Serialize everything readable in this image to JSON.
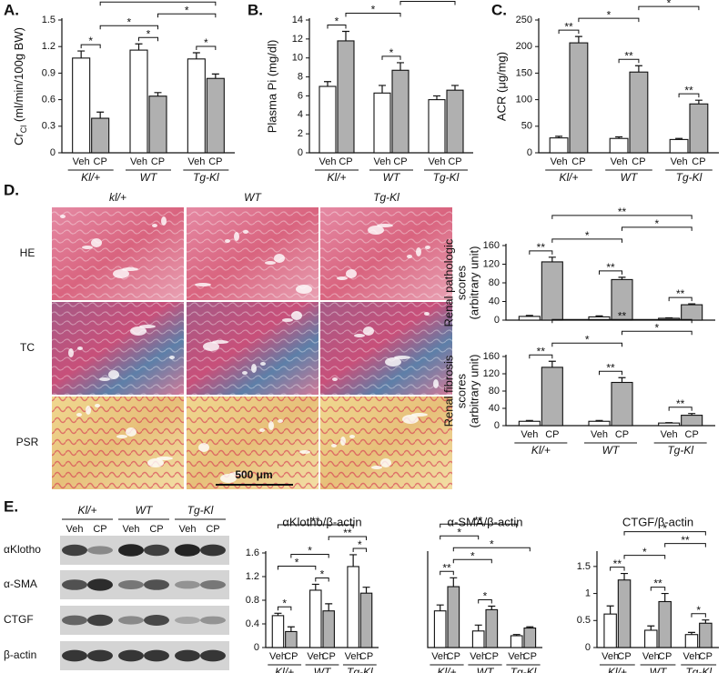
{
  "chart_data": [
    {
      "type": "bar",
      "panel": "A.",
      "ylabel_parts": [
        "Cr",
        "Cl",
        " (ml/min/100g BW)"
      ],
      "ylabel_subscript": [
        false,
        true,
        false
      ],
      "categories": [
        "Kl/+",
        "WT",
        "Tg-Kl"
      ],
      "series": [
        {
          "name": "Veh",
          "color": "#ffffff",
          "values": [
            1.07,
            1.16,
            1.06
          ],
          "errors": [
            0.08,
            0.07,
            0.07
          ]
        },
        {
          "name": "CP",
          "color": "#b0b0b0",
          "values": [
            0.39,
            0.64,
            0.84
          ],
          "errors": [
            0.07,
            0.04,
            0.05
          ]
        }
      ],
      "ylim": [
        0,
        1.5
      ],
      "yticks": [
        0,
        0.3,
        0.6,
        0.9,
        1.2,
        1.5
      ],
      "brackets": [
        {
          "from": 0,
          "to": 1,
          "label": "*"
        },
        {
          "from": 2,
          "to": 3,
          "label": "*"
        },
        {
          "from": 4,
          "to": 5,
          "label": "*"
        },
        {
          "from": 1,
          "to": 3,
          "label": "*"
        },
        {
          "from": 3,
          "to": 5,
          "label": "*"
        },
        {
          "from": 1,
          "to": 5,
          "label": "**"
        }
      ]
    },
    {
      "type": "bar",
      "panel": "B.",
      "ylabel": "Plasma Pi (mg/dl)",
      "categories": [
        "Kl/+",
        "WT",
        "Tg-Kl"
      ],
      "series": [
        {
          "name": "Veh",
          "color": "#ffffff",
          "values": [
            7.0,
            6.3,
            5.6
          ],
          "errors": [
            0.5,
            0.8,
            0.4
          ]
        },
        {
          "name": "CP",
          "color": "#b0b0b0",
          "values": [
            11.8,
            8.7,
            6.6
          ],
          "errors": [
            1.0,
            0.8,
            0.5
          ]
        }
      ],
      "ylim": [
        0,
        14
      ],
      "yticks": [
        0,
        2,
        4,
        6,
        8,
        10,
        12,
        14
      ],
      "brackets": [
        {
          "from": 0,
          "to": 1,
          "label": "*"
        },
        {
          "from": 2,
          "to": 3,
          "label": "*"
        },
        {
          "from": 1,
          "to": 3,
          "label": "*"
        },
        {
          "from": 3,
          "to": 5,
          "label": "*"
        },
        {
          "from": 1,
          "to": 5,
          "label": "**"
        }
      ]
    },
    {
      "type": "bar",
      "panel": "C.",
      "ylabel": "ACR (μg/mg)",
      "categories": [
        "Kl/+",
        "WT",
        "Tg-Kl"
      ],
      "series": [
        {
          "name": "Veh",
          "color": "#ffffff",
          "values": [
            28,
            27,
            25
          ],
          "errors": [
            3,
            3,
            2
          ]
        },
        {
          "name": "CP",
          "color": "#b0b0b0",
          "values": [
            207,
            152,
            92
          ],
          "errors": [
            12,
            12,
            7
          ]
        }
      ],
      "ylim": [
        0,
        250
      ],
      "yticks": [
        0,
        50,
        100,
        150,
        200,
        250
      ],
      "brackets": [
        {
          "from": 0,
          "to": 1,
          "label": "**"
        },
        {
          "from": 2,
          "to": 3,
          "label": "**"
        },
        {
          "from": 4,
          "to": 5,
          "label": "**"
        },
        {
          "from": 1,
          "to": 3,
          "label": "*"
        },
        {
          "from": 3,
          "to": 5,
          "label": "*"
        },
        {
          "from": 1,
          "to": 5,
          "label": "**"
        }
      ]
    },
    {
      "type": "bar",
      "ylabel_lines": [
        "Renal pathologic",
        "scores",
        "(arbitrary unit)"
      ],
      "xlabels": false,
      "categories": [
        "Kl/+",
        "WT",
        "Tg-Kl"
      ],
      "series": [
        {
          "name": "Veh",
          "color": "#ffffff",
          "values": [
            8,
            7,
            4
          ],
          "errors": [
            2,
            2,
            1
          ]
        },
        {
          "name": "CP",
          "color": "#b0b0b0",
          "values": [
            125,
            87,
            33
          ],
          "errors": [
            10,
            5,
            2
          ]
        }
      ],
      "ylim": [
        0,
        160
      ],
      "yticks": [
        0,
        40,
        80,
        120,
        160
      ],
      "brackets": [
        {
          "from": 0,
          "to": 1,
          "label": "**"
        },
        {
          "from": 2,
          "to": 3,
          "label": "**"
        },
        {
          "from": 4,
          "to": 5,
          "label": "**"
        },
        {
          "from": 1,
          "to": 3,
          "label": "*"
        },
        {
          "from": 3,
          "to": 5,
          "label": "*"
        },
        {
          "from": 1,
          "to": 5,
          "label": "**"
        }
      ]
    },
    {
      "type": "bar",
      "ylabel_lines": [
        "Renal fibrosis",
        "scores",
        "(arbitrary unit)"
      ],
      "categories": [
        "Kl/+",
        "WT",
        "Tg-Kl"
      ],
      "series": [
        {
          "name": "Veh",
          "color": "#ffffff",
          "values": [
            10,
            10,
            6
          ],
          "errors": [
            2,
            2,
            1
          ]
        },
        {
          "name": "CP",
          "color": "#b0b0b0",
          "values": [
            135,
            100,
            24
          ],
          "errors": [
            14,
            11,
            4
          ]
        }
      ],
      "ylim": [
        0,
        160
      ],
      "yticks": [
        0,
        40,
        80,
        120,
        160
      ],
      "brackets": [
        {
          "from": 0,
          "to": 1,
          "label": "**"
        },
        {
          "from": 2,
          "to": 3,
          "label": "**"
        },
        {
          "from": 4,
          "to": 5,
          "label": "**"
        },
        {
          "from": 1,
          "to": 3,
          "label": "*"
        },
        {
          "from": 3,
          "to": 5,
          "label": "*"
        },
        {
          "from": 1,
          "to": 5,
          "label": "**"
        }
      ]
    },
    {
      "type": "bar",
      "title": "αKlotho/β-actin",
      "categories": [
        "Kl/+",
        "WT",
        "Tg-Kl"
      ],
      "series": [
        {
          "name": "Veh",
          "color": "#ffffff",
          "values": [
            0.54,
            0.97,
            1.37
          ],
          "errors": [
            0.04,
            0.1,
            0.2
          ]
        },
        {
          "name": "CP",
          "color": "#b0b0b0",
          "values": [
            0.27,
            0.62,
            0.92
          ],
          "errors": [
            0.08,
            0.12,
            0.1
          ]
        }
      ],
      "ylim": [
        0,
        1.6
      ],
      "yticks": [
        0,
        0.4,
        0.8,
        1.2,
        1.6
      ],
      "brackets": [
        {
          "from": 0,
          "to": 1,
          "label": "*"
        },
        {
          "from": 2,
          "to": 3,
          "label": "*"
        },
        {
          "from": 4,
          "to": 5,
          "label": "*"
        },
        {
          "from": 0,
          "to": 2,
          "label": "*"
        },
        {
          "from": 1,
          "to": 3,
          "label": "*"
        },
        {
          "from": 3,
          "to": 5,
          "label": "**"
        },
        {
          "from": 0,
          "to": 4,
          "label": "**"
        }
      ]
    },
    {
      "type": "bar",
      "title": "α-SMA/β-actin",
      "categories": [
        "Kl/+",
        "WT",
        "Tg-Kl"
      ],
      "series": [
        {
          "name": "Veh",
          "color": "#ffffff",
          "values": [
            0.62,
            0.28,
            0.2
          ],
          "errors": [
            0.1,
            0.1,
            0.02
          ]
        },
        {
          "name": "CP",
          "color": "#b0b0b0",
          "values": [
            1.03,
            0.64,
            0.33
          ],
          "errors": [
            0.15,
            0.06,
            0.02
          ]
        }
      ],
      "ylim": [
        0,
        1.6
      ],
      "brackets": [
        {
          "from": 0,
          "to": 1,
          "label": "**"
        },
        {
          "from": 2,
          "to": 3,
          "label": "*"
        },
        {
          "from": 1,
          "to": 3,
          "label": "*"
        },
        {
          "from": 1,
          "to": 5,
          "label": "*"
        },
        {
          "from": 0,
          "to": 2,
          "label": "*"
        },
        {
          "from": 0,
          "to": 4,
          "label": "**"
        }
      ]
    },
    {
      "type": "bar",
      "title": "CTGF/β-actin",
      "categories": [
        "Kl/+",
        "WT",
        "Tg-Kl"
      ],
      "series": [
        {
          "name": "Veh",
          "color": "#ffffff",
          "values": [
            0.62,
            0.32,
            0.24
          ],
          "errors": [
            0.15,
            0.08,
            0.04
          ]
        },
        {
          "name": "CP",
          "color": "#b0b0b0",
          "values": [
            1.25,
            0.85,
            0.45
          ],
          "errors": [
            0.12,
            0.15,
            0.06
          ]
        }
      ],
      "ylim": [
        0,
        1.75
      ],
      "yticks": [
        0,
        0.5,
        1,
        1.5
      ],
      "brackets": [
        {
          "from": 0,
          "to": 1,
          "label": "**"
        },
        {
          "from": 2,
          "to": 3,
          "label": "**"
        },
        {
          "from": 4,
          "to": 5,
          "label": "*"
        },
        {
          "from": 1,
          "to": 3,
          "label": "*"
        },
        {
          "from": 3,
          "to": 5,
          "label": "**"
        },
        {
          "from": 1,
          "to": 5,
          "label": "*"
        }
      ]
    }
  ],
  "histology": {
    "panel": "D.",
    "columns": [
      "kl/+",
      "WT",
      "Tg-Kl"
    ],
    "rows": [
      "HE",
      "TC",
      "PSR"
    ],
    "scale": "500 μm"
  },
  "blot": {
    "panel": "E.",
    "groups": [
      "Kl/+",
      "WT",
      "Tg-Kl"
    ],
    "lanes": [
      "Veh",
      "CP"
    ],
    "proteins": [
      "αKlotho",
      "α-SMA",
      "CTGF",
      "β-actin"
    ]
  }
}
